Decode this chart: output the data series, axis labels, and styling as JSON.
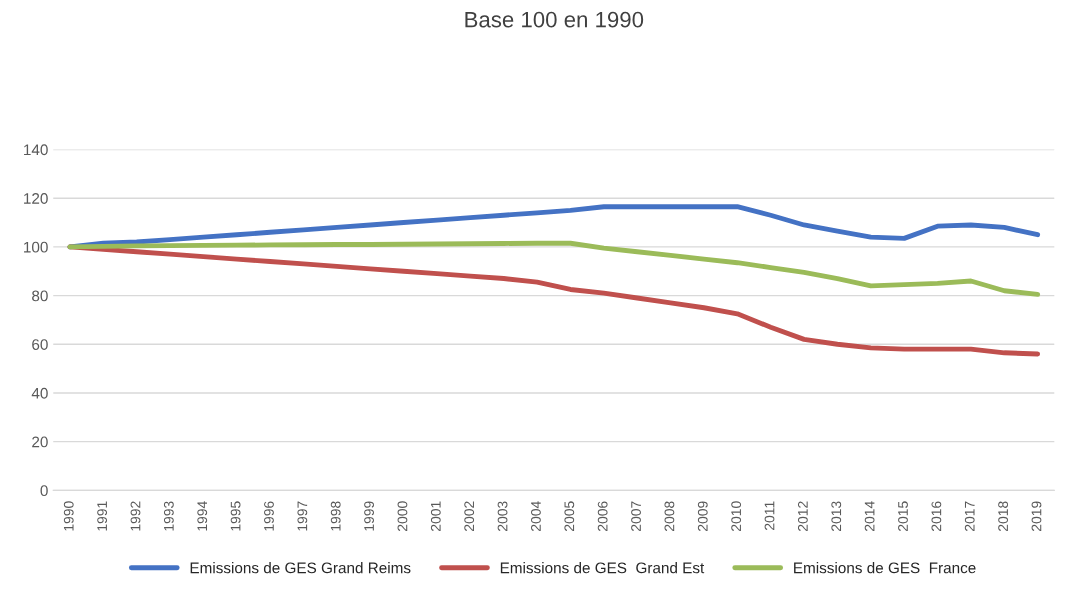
{
  "chart_data": {
    "type": "line",
    "title": "Base 100 en 1990",
    "categories": [
      "1990",
      "1991",
      "1992",
      "1993",
      "1994",
      "1995",
      "1996",
      "1997",
      "1998",
      "1999",
      "2000",
      "2001",
      "2002",
      "2003",
      "2004",
      "2005",
      "2006",
      "2007",
      "2008",
      "2009",
      "2010",
      "2011",
      "2012",
      "2013",
      "2014",
      "2015",
      "2016",
      "2017",
      "2018",
      "2019"
    ],
    "series": [
      {
        "name": "Emissions de GES Grand Reims",
        "color": "#4472c4",
        "values": [
          100,
          101.5,
          102,
          103,
          104,
          105,
          106,
          107,
          108,
          109,
          110,
          111,
          112,
          113,
          114,
          115,
          116.5,
          116.5,
          116.5,
          116.5,
          116.5,
          113,
          109,
          106.5,
          104,
          103.5,
          108.5,
          109,
          108,
          105
        ]
      },
      {
        "name": "Emissions de GES  Grand Est",
        "color": "#c0504d",
        "values": [
          100,
          99,
          98,
          97,
          96,
          95,
          94,
          93,
          92,
          91,
          90,
          89,
          88,
          87,
          85.5,
          82.5,
          81,
          79,
          77,
          75,
          72.5,
          67,
          62,
          60,
          58.5,
          58,
          58,
          58,
          56.5,
          56
        ]
      },
      {
        "name": "Emissions de GES  France",
        "color": "#9bbb59",
        "values": [
          100,
          100.2,
          100.4,
          100.5,
          100.6,
          100.7,
          100.8,
          100.9,
          101,
          101,
          101.1,
          101.2,
          101.3,
          101.4,
          101.5,
          101.5,
          99.5,
          98,
          96.5,
          95,
          93.5,
          91.5,
          89.5,
          87,
          84,
          84.5,
          85,
          86,
          82,
          80.5
        ]
      }
    ],
    "ylim": [
      0,
      140
    ],
    "yticks": [
      0,
      20,
      40,
      60,
      80,
      100,
      120,
      140
    ],
    "grid": "y",
    "legend": "bottom",
    "marker": "none",
    "line_style": "solid"
  }
}
